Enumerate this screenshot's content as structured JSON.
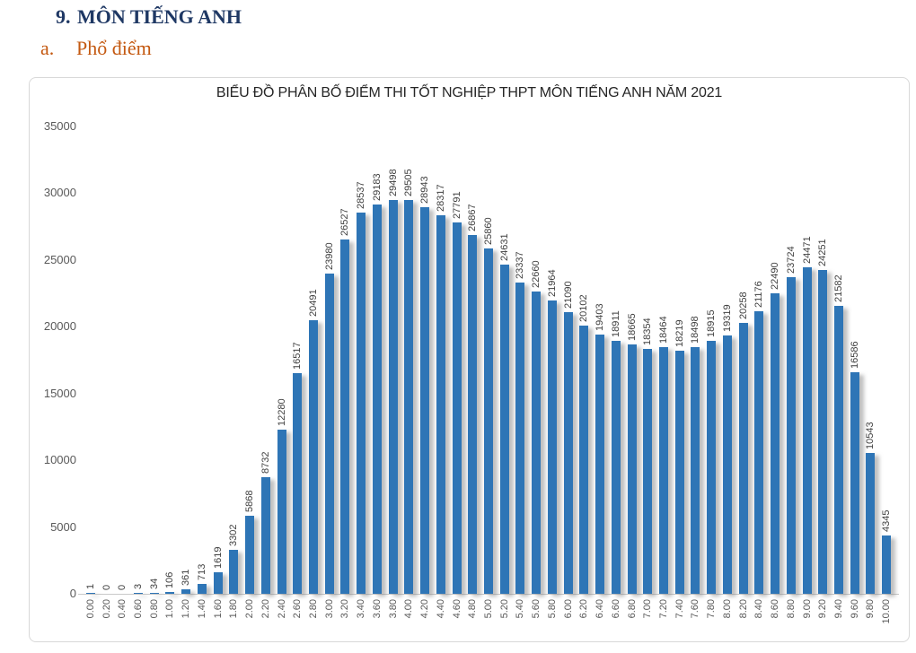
{
  "header": {
    "section_number": "9.",
    "section_title": "MÔN TIẾNG ANH",
    "item_marker": "a.",
    "item_title": "Phổ điểm"
  },
  "colors": {
    "bar": "#2E75B6",
    "section_heading": "#1F3864",
    "item_heading": "#C45911",
    "axis_text": "#595959",
    "label_text": "#404040"
  },
  "chart_data": {
    "type": "bar",
    "title": "BIỂU ĐỒ PHÂN BỐ ĐIỂM THI TỐT NGHIỆP THPT MÔN TIẾNG ANH NĂM 2021",
    "xlabel": "",
    "ylabel": "",
    "ylim": [
      0,
      35000
    ],
    "y_ticks": [
      0,
      5000,
      10000,
      15000,
      20000,
      25000,
      30000,
      35000
    ],
    "grid": false,
    "legend": false,
    "bar_color": "#2E75B6",
    "categories": [
      "0.00",
      "0.20",
      "0.40",
      "0.60",
      "0.80",
      "1.00",
      "1.20",
      "1.40",
      "1.60",
      "1.80",
      "2.00",
      "2.20",
      "2.40",
      "2.60",
      "2.80",
      "3.00",
      "3.20",
      "3.40",
      "3.60",
      "3.80",
      "4.00",
      "4.20",
      "4.40",
      "4.60",
      "4.80",
      "5.00",
      "5.20",
      "5.40",
      "5.60",
      "5.80",
      "6.00",
      "6.20",
      "6.40",
      "6.60",
      "6.80",
      "7.00",
      "7.20",
      "7.40",
      "7.60",
      "7.80",
      "8.00",
      "8.20",
      "8.40",
      "8.60",
      "8.80",
      "9.00",
      "9.20",
      "9.40",
      "9.60",
      "9.80",
      "10.00"
    ],
    "values": [
      1,
      0,
      0,
      3,
      34,
      106,
      361,
      713,
      1619,
      3302,
      5868,
      8732,
      12280,
      16517,
      20491,
      23980,
      26527,
      28537,
      29183,
      29498,
      29505,
      28943,
      28317,
      27791,
      26867,
      25860,
      24631,
      23337,
      22660,
      21964,
      21090,
      20102,
      19403,
      18911,
      18665,
      18354,
      18464,
      18219,
      18498,
      18915,
      19319,
      20258,
      21176,
      22490,
      23724,
      24471,
      24251,
      21582,
      16586,
      10543,
      4345
    ]
  }
}
